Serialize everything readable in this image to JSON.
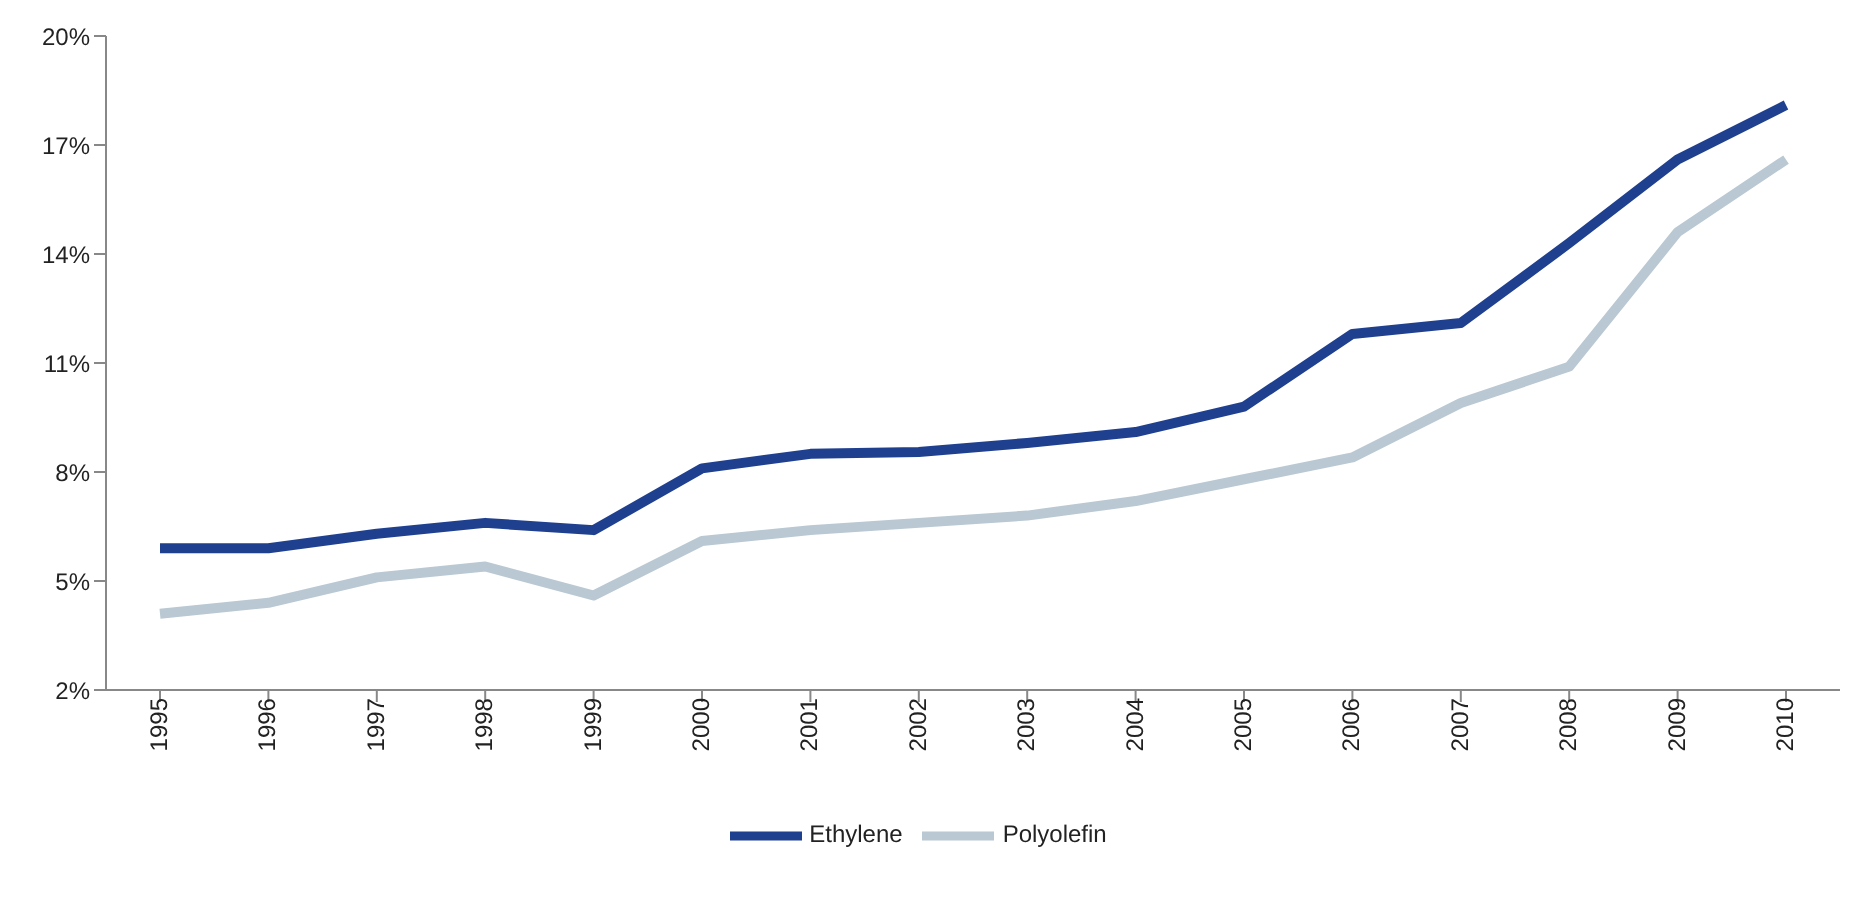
{
  "chart_data": {
    "type": "line",
    "categories": [
      "1995",
      "1996",
      "1997",
      "1998",
      "1999",
      "2000",
      "2001",
      "2002",
      "2003",
      "2004",
      "2005",
      "2006",
      "2007",
      "2008",
      "2009",
      "2010"
    ],
    "series": [
      {
        "name": "Ethylene",
        "color": "#1f3f8f",
        "values": [
          5.9,
          5.9,
          6.3,
          6.6,
          6.4,
          8.1,
          8.5,
          8.55,
          8.8,
          9.1,
          9.8,
          11.8,
          12.1,
          14.3,
          16.6,
          18.1
        ]
      },
      {
        "name": "Polyolefin",
        "color": "#b9c8d2",
        "values": [
          4.1,
          4.4,
          5.1,
          5.4,
          4.6,
          6.1,
          6.4,
          6.6,
          6.8,
          7.2,
          7.8,
          8.4,
          9.9,
          10.9,
          14.6,
          16.6
        ]
      }
    ],
    "ylim": [
      2,
      20
    ],
    "yticks": [
      {
        "value": 2,
        "label": "2%"
      },
      {
        "value": 5,
        "label": "5%"
      },
      {
        "value": 8,
        "label": "8%"
      },
      {
        "value": 11,
        "label": "11%"
      },
      {
        "value": 14,
        "label": "14%"
      },
      {
        "value": 17,
        "label": "17%"
      },
      {
        "value": 20,
        "label": "20%"
      }
    ],
    "grid": false,
    "legend": "bottom",
    "marker": "none",
    "line_style": "solid"
  }
}
